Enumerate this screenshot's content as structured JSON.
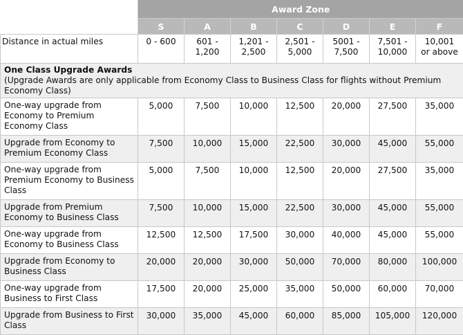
{
  "header": {
    "award_zone_label": "Award Zone",
    "zones": [
      "S",
      "A",
      "B",
      "C",
      "D",
      "E",
      "F"
    ]
  },
  "distance_row": {
    "label": "Distance in actual miles",
    "values": [
      [
        "0 - 600",
        ""
      ],
      [
        "601 -",
        "1,200"
      ],
      [
        "1,201 -",
        "2,500"
      ],
      [
        "2,501 -",
        "5,000"
      ],
      [
        "5001 -",
        "7,500"
      ],
      [
        "7,501 -",
        "10,000"
      ],
      [
        "10,001",
        "or above"
      ]
    ]
  },
  "section": {
    "title": "One Class Upgrade Awards",
    "note": "(Upgrade Awards are only applicable from Economy Class to Business Class for flights without Premium Economy Class)"
  },
  "rows": [
    {
      "label": "One-way upgrade from Economy to Premium Economy Class",
      "values": [
        "5,000",
        "7,500",
        "10,000",
        "12,500",
        "20,000",
        "27,500",
        "35,000"
      ]
    },
    {
      "label": "Upgrade from Economy to Premium Economy Class",
      "values": [
        "7,500",
        "10,000",
        "15,000",
        "22,500",
        "30,000",
        "45,000",
        "55,000"
      ]
    },
    {
      "label": "One-way upgrade from Premium Economy to Business Class",
      "values": [
        "5,000",
        "7,500",
        "10,000",
        "12,500",
        "20,000",
        "27,500",
        "35,000"
      ]
    },
    {
      "label": "Upgrade from Premium Economy to Business Class",
      "values": [
        "7,500",
        "10,000",
        "15,000",
        "22,500",
        "30,000",
        "45,000",
        "55,000"
      ]
    },
    {
      "label": "One-way upgrade from Economy to Business Class",
      "values": [
        "12,500",
        "12,500",
        "17,500",
        "30,000",
        "40,000",
        "45,000",
        "55,000"
      ]
    },
    {
      "label": "Upgrade from Economy to Business Class",
      "values": [
        "20,000",
        "20,000",
        "30,000",
        "50,000",
        "70,000",
        "80,000",
        "100,000"
      ]
    },
    {
      "label": "One-way upgrade from Business to First Class",
      "values": [
        "17,500",
        "20,000",
        "25,000",
        "35,000",
        "50,000",
        "60,000",
        "70,000"
      ]
    },
    {
      "label": "Upgrade from Business to First Class",
      "values": [
        "30,000",
        "35,000",
        "45,000",
        "60,000",
        "85,000",
        "105,000",
        "120,000"
      ]
    }
  ]
}
